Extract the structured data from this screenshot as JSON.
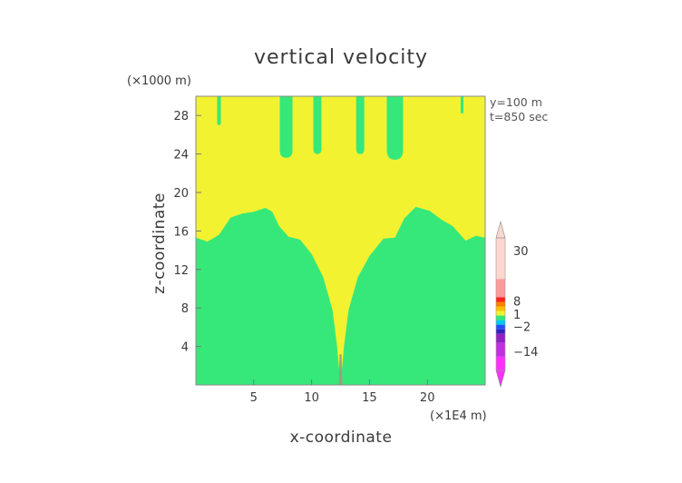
{
  "chart_data": {
    "type": "heatmap",
    "title": "vertical velocity",
    "xlabel": "x-coordinate",
    "ylabel": "z-coordinate",
    "x_unit": "(×1E4 m)",
    "y_unit": "(×1000 m)",
    "xlim": [
      0,
      25
    ],
    "ylim": [
      0,
      30
    ],
    "x_ticks": [
      5,
      10,
      15,
      20
    ],
    "y_ticks": [
      4,
      8,
      12,
      16,
      20,
      24,
      28
    ],
    "annotations": [
      "y=100 m",
      "t=850 sec"
    ],
    "fill_colors": {
      "upper": "#f2f230",
      "lower": "#36e87a",
      "core": "#9aa07a"
    },
    "boundary": [
      [
        0,
        15.3
      ],
      [
        1.0,
        14.9
      ],
      [
        2.0,
        15.6
      ],
      [
        3.0,
        17.4
      ],
      [
        4.0,
        17.8
      ],
      [
        5.0,
        18.0
      ],
      [
        6.0,
        18.4
      ],
      [
        6.6,
        18.0
      ],
      [
        7.2,
        16.5
      ],
      [
        8.0,
        15.4
      ],
      [
        9.0,
        15.1
      ],
      [
        10.0,
        13.6
      ],
      [
        11.0,
        11.2
      ],
      [
        11.8,
        7.8
      ],
      [
        12.2,
        4.0
      ],
      [
        12.5,
        0
      ],
      [
        12.8,
        4.0
      ],
      [
        13.2,
        7.8
      ],
      [
        14.0,
        11.2
      ],
      [
        15.0,
        13.4
      ],
      [
        16.2,
        15.2
      ],
      [
        17.2,
        15.3
      ],
      [
        18.0,
        17.3
      ],
      [
        19.0,
        18.5
      ],
      [
        20.2,
        18.1
      ],
      [
        21.2,
        17.2
      ],
      [
        22.2,
        16.5
      ],
      [
        23.3,
        15.0
      ],
      [
        24.2,
        15.5
      ],
      [
        25.0,
        15.3
      ]
    ],
    "fingers": [
      {
        "x": 2.0,
        "half_width": 0.16,
        "bottom": 27.0
      },
      {
        "x": 7.8,
        "half_width": 0.55,
        "bottom": 23.6
      },
      {
        "x": 10.5,
        "half_width": 0.35,
        "bottom": 24.0
      },
      {
        "x": 14.2,
        "half_width": 0.35,
        "bottom": 24.0
      },
      {
        "x": 17.2,
        "half_width": 0.7,
        "bottom": 23.4
      },
      {
        "x": 23.0,
        "half_width": 0.12,
        "bottom": 28.2
      }
    ],
    "colorbar": {
      "labels": [
        "30",
        "8",
        "1",
        "−2",
        "−14"
      ],
      "label_levels": [
        30,
        8,
        1,
        -2,
        -14
      ],
      "bands": [
        {
          "from": 18,
          "to": 36,
          "color": "#ffd6d0"
        },
        {
          "from": 10,
          "to": 18,
          "color": "#ff9a9a"
        },
        {
          "from": 8,
          "to": 10,
          "color": "#ff2020"
        },
        {
          "from": 6,
          "to": 8,
          "color": "#ff7f00"
        },
        {
          "from": 4,
          "to": 6,
          "color": "#ffbf00"
        },
        {
          "from": 2,
          "to": 4,
          "color": "#f2f230"
        },
        {
          "from": 0,
          "to": 2,
          "color": "#36e87a"
        },
        {
          "from": -2,
          "to": 0,
          "color": "#00c8f0"
        },
        {
          "from": -4,
          "to": -2,
          "color": "#2050ff"
        },
        {
          "from": -6,
          "to": -4,
          "color": "#3020c0"
        },
        {
          "from": -10,
          "to": -6,
          "color": "#9020c0"
        },
        {
          "from": -16,
          "to": -10,
          "color": "#c030e0"
        },
        {
          "from": -22,
          "to": -16,
          "color": "#ff30ff"
        }
      ],
      "min": -22,
      "max": 36
    }
  }
}
